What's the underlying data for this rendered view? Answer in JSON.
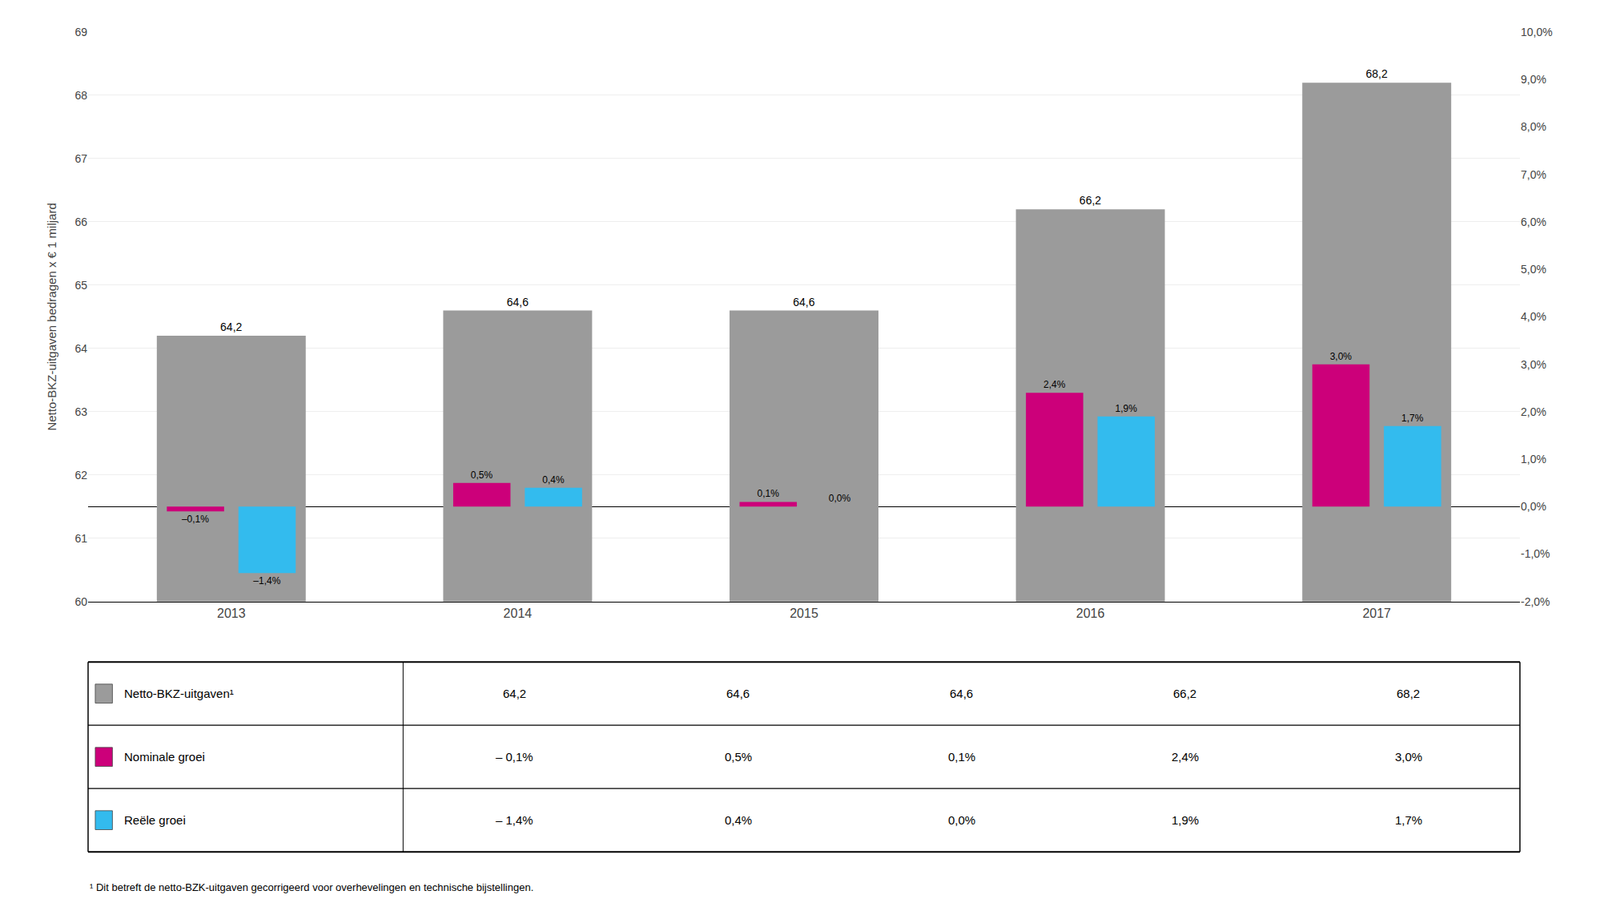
{
  "chart_data": {
    "type": "bar",
    "y_label": "Netto-BKZ-uitgaven bedragen x € 1 miljard",
    "categories": [
      "2013",
      "2014",
      "2015",
      "2016",
      "2017"
    ],
    "series": [
      {
        "name": "Netto-BKZ-uitgaven¹",
        "color": "#9B9B9B",
        "axis": "y",
        "values": [
          64.2,
          64.6,
          64.6,
          66.2,
          68.2
        ],
        "value_labels": [
          "64,2",
          "64,6",
          "64,6",
          "66,2",
          "68,2"
        ],
        "table_values": [
          "64,2",
          "64,6",
          "64,6",
          "66,2",
          "68,2"
        ]
      },
      {
        "name": "Nominale groei",
        "color": "#CC007A",
        "axis": "y2",
        "values": [
          -0.1,
          0.5,
          0.1,
          2.4,
          3.0
        ],
        "value_labels": [
          "–0,1%",
          "0,5%",
          "0,1%",
          "2,4%",
          "3,0%"
        ],
        "table_values": [
          "– 0,1%",
          "0,5%",
          "0,1%",
          "2,4%",
          "3,0%"
        ]
      },
      {
        "name": "Reële groei",
        "color": "#33BBEE",
        "axis": "y2",
        "values": [
          -1.4,
          0.4,
          0.0,
          1.9,
          1.7
        ],
        "value_labels": [
          "–1,4%",
          "0,4%",
          "0,0%",
          "1,9%",
          "1,7%"
        ],
        "table_values": [
          "– 1,4%",
          "0,4%",
          "0,0%",
          "1,9%",
          "1,7%"
        ]
      }
    ],
    "ylim": [
      60,
      69
    ],
    "yticks": [
      60,
      61,
      62,
      63,
      64,
      65,
      66,
      67,
      68,
      69
    ],
    "y2lim": [
      -2.0,
      10.0
    ],
    "y2ticks": [
      {
        "value": -2,
        "label": "-2,0%"
      },
      {
        "value": -1,
        "label": "-1,0%"
      },
      {
        "value": 0,
        "label": "0,0%"
      },
      {
        "value": 1,
        "label": "1,0%"
      },
      {
        "value": 2,
        "label": "2,0%"
      },
      {
        "value": 3,
        "label": "3,0%"
      },
      {
        "value": 4,
        "label": "4,0%"
      },
      {
        "value": 5,
        "label": "5,0%"
      },
      {
        "value": 6,
        "label": "6,0%"
      },
      {
        "value": 7,
        "label": "7,0%"
      },
      {
        "value": 8,
        "label": "8,0%"
      },
      {
        "value": 9,
        "label": "9,0%"
      },
      {
        "value": 10,
        "label": "10,0%"
      }
    ],
    "grid": true,
    "data_labels": true,
    "footnote": "¹ Dit betreft de netto-BZK-uitgaven gecorrigeerd voor overhevelingen en technische bijstellingen."
  }
}
